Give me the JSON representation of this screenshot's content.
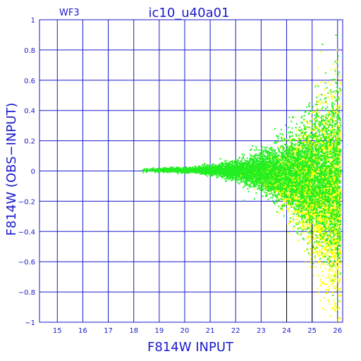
{
  "chart_data": {
    "type": "scatter",
    "title": "ic10_u40a01",
    "corner_label": "WF3",
    "xlabel": "F814W INPUT",
    "ylabel": "F814W (OBS−INPUT)",
    "xlim": [
      14.3,
      26.2
    ],
    "ylim": [
      -1,
      1
    ],
    "x_ticks": [
      15,
      16,
      17,
      18,
      19,
      20,
      21,
      22,
      23,
      24,
      25,
      26
    ],
    "y_ticks": [
      -1,
      -0.8,
      -0.6,
      -0.4,
      -0.2,
      0,
      0.2,
      0.4,
      0.6,
      0.8,
      1
    ],
    "y_tick_labels": [
      "−1",
      "−0.8",
      "−0.6",
      "−0.4",
      "−0.2",
      "0",
      "0.2",
      "0.4",
      "0.6",
      "0.8",
      "1"
    ],
    "grid": true,
    "vertical_markers": [
      24,
      25
    ],
    "colors": {
      "axis": "#1a1acc",
      "grid": "#1a1acc",
      "marker": "#000000"
    },
    "series": [
      {
        "color": "#ffff00",
        "description_points": "dense yellow cloud, x from 22 to 26, y scatter widening with magnitude",
        "x_range": [
          21.8,
          26.1
        ],
        "scatter_model": {
          "center_y_at_faint": -0.2,
          "spread": "increases with x"
        }
      },
      {
        "color": "#22ee22",
        "x_range": [
          18.3,
          26.1
        ],
        "scatter_model": {
          "center_y": 0.01,
          "spread": "narrow at bright end, wide at faint end"
        }
      }
    ]
  }
}
